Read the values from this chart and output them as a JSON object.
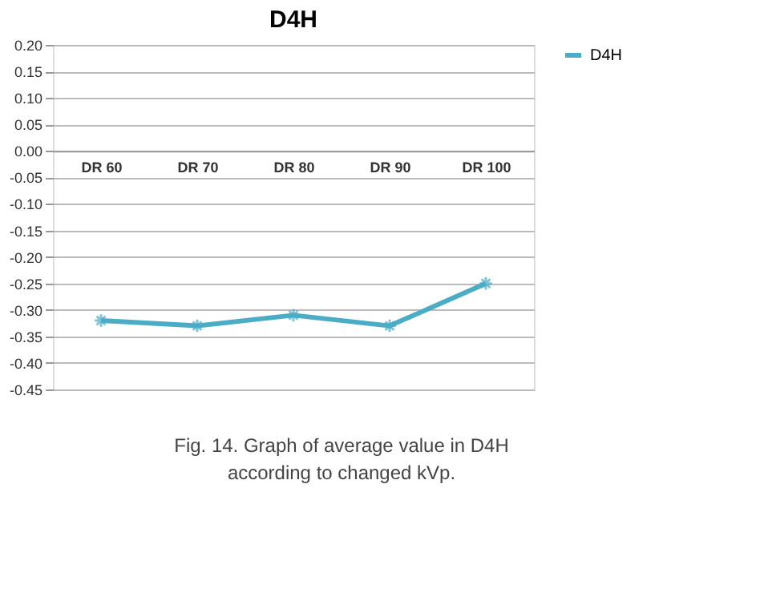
{
  "chart_data": {
    "type": "line",
    "title": "D4H",
    "categories": [
      "DR 60",
      "DR 70",
      "DR 80",
      "DR 90",
      "DR 100"
    ],
    "series": [
      {
        "name": "D4H",
        "color": "#4bacc6",
        "values": [
          -0.32,
          -0.33,
          -0.31,
          -0.33,
          -0.25
        ]
      }
    ],
    "ylim": [
      -0.45,
      0.2
    ],
    "yticks": [
      {
        "value": -0.45,
        "label": "-0.45"
      },
      {
        "value": -0.4,
        "label": "-0.40"
      },
      {
        "value": -0.35,
        "label": "-0.35"
      },
      {
        "value": -0.3,
        "label": "-0.30"
      },
      {
        "value": -0.25,
        "label": "-0.25"
      },
      {
        "value": -0.2,
        "label": "-0.20"
      },
      {
        "value": -0.15,
        "label": "-0.15"
      },
      {
        "value": -0.1,
        "label": "-0.10"
      },
      {
        "value": -0.05,
        "label": "-0.05"
      },
      {
        "value": 0,
        "label": "0.00"
      },
      {
        "value": 0.05,
        "label": "0.05"
      },
      {
        "value": 0.1,
        "label": "0.10"
      },
      {
        "value": 0.15,
        "label": "0.15"
      },
      {
        "value": 0.2,
        "label": "0.20"
      }
    ],
    "grid": "y",
    "legend": "right",
    "marker": "cross",
    "line_style": "solid",
    "annotations": [
      "Fig. 14. Graph of average value in D4H",
      "according to changed kVp."
    ]
  }
}
